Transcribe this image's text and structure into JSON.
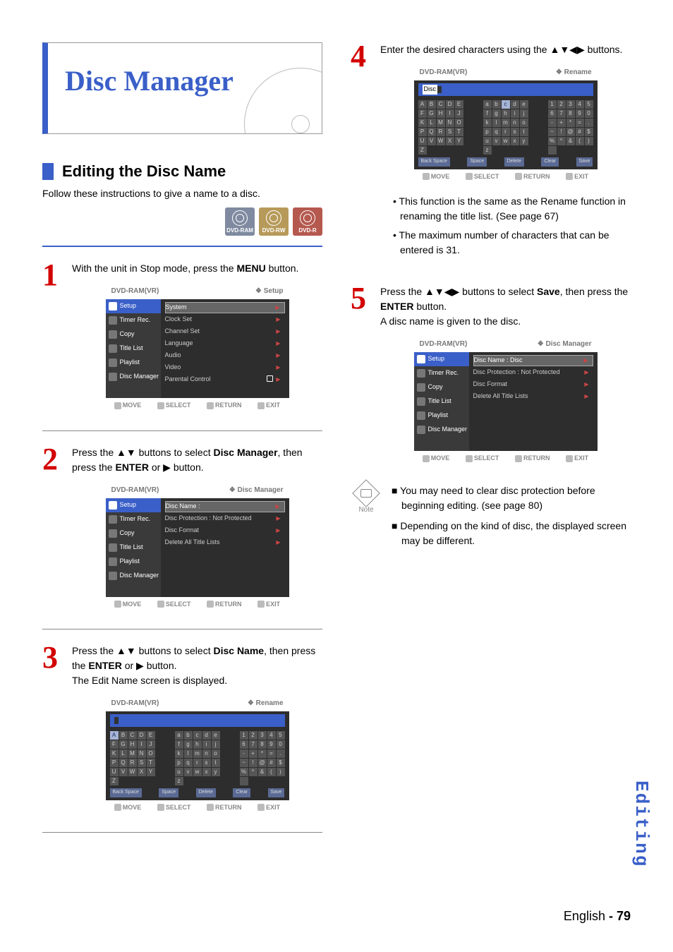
{
  "title": "Disc Manager",
  "section": {
    "heading": "Editing the Disc Name",
    "intro": "Follow these instructions to give a name to a disc."
  },
  "disc_badges": {
    "ram": "DVD-RAM",
    "rw": "DVD-RW",
    "r": "DVD-R"
  },
  "steps": {
    "s1": {
      "num": "1",
      "line1": "With the unit in Stop mode, press the ",
      "bold": "MENU",
      "line2": " button."
    },
    "s2": {
      "num": "2",
      "line1": "Press the ▲▼ buttons to select ",
      "bold": "Disc Manager",
      "line2": ", then press the ",
      "bold2": "ENTER",
      "line3": " or ▶ button."
    },
    "s3": {
      "num": "3",
      "line1": "Press the ▲▼ buttons to select ",
      "bold": "Disc Name",
      "line2": ", then press the ",
      "bold2": "ENTER",
      "line3": " or ▶ button.",
      "line4": "The Edit Name screen is displayed."
    },
    "s4": {
      "num": "4",
      "line1": "Enter the desired characters using the ▲▼◀▶ buttons."
    },
    "s5": {
      "num": "5",
      "line1": "Press the ▲▼◀▶ buttons to select ",
      "bold": "Save",
      "line2": ", then press the ",
      "bold2": "ENTER",
      "line3": " button.",
      "line4": "A disc name is given to the disc."
    }
  },
  "step4_bullets": {
    "b1": "• This function is the same as the Rename function in renaming the title list. (See page 67)",
    "b2": "• The maximum number of characters that can be entered is 31."
  },
  "note": {
    "label": "Note",
    "n1": "■ You may need to clear disc protection before beginning editing. (see page 80)",
    "n2": "■ Depending on the kind of disc, the displayed screen may be different."
  },
  "osd_common": {
    "device": "DVD-RAM(VR)",
    "move": "MOVE",
    "select": "SELECT",
    "return": "RETURN",
    "exit": "EXIT"
  },
  "osd_setup": {
    "crumb": "Setup",
    "tabs": {
      "setup": "Setup",
      "timer": "Timer Rec.",
      "copy": "Copy",
      "title": "Title List",
      "play": "Playlist",
      "mgr": "Disc Manager"
    },
    "items": {
      "sys": "System",
      "clk": "Clock Set",
      "ch": "Channel Set",
      "lang": "Language",
      "audio": "Audio",
      "video": "Video",
      "par": "Parental Control"
    }
  },
  "osd_mgr": {
    "crumb": "Disc Manager",
    "items": {
      "name": "Disc Name",
      "nameval": ":",
      "prot": "Disc Protection",
      "protval": ": Not Protected",
      "fmt": "Disc Format",
      "del": "Delete All Title Lists"
    }
  },
  "osd_mgr2": {
    "items": {
      "name": "Disc Name",
      "nameval": ": Disc",
      "prot": "Disc Protection",
      "protval": ": Not Protected",
      "fmt": "Disc Format",
      "del": "Delete All Title Lists"
    }
  },
  "osd_rename": {
    "crumb": "Rename",
    "field_prefix": "",
    "disc_label": "Disc",
    "upper": [
      "A",
      "B",
      "C",
      "D",
      "E",
      "F",
      "G",
      "H",
      "I",
      "J",
      "K",
      "L",
      "M",
      "N",
      "O",
      "P",
      "Q",
      "R",
      "S",
      "T",
      "U",
      "V",
      "W",
      "X",
      "Y",
      "Z"
    ],
    "lower": [
      "a",
      "b",
      "c",
      "d",
      "e",
      "f",
      "g",
      "h",
      "i",
      "j",
      "k",
      "l",
      "m",
      "n",
      "o",
      "p",
      "q",
      "r",
      "s",
      "t",
      "u",
      "v",
      "w",
      "x",
      "y",
      "z"
    ],
    "sym": [
      "1",
      "2",
      "3",
      "4",
      "5",
      "6",
      "7",
      "8",
      "9",
      "0",
      "-",
      "+",
      "*",
      "=",
      ".",
      "~",
      "!",
      "@",
      "#",
      "$",
      "%",
      "^",
      "&",
      "(",
      ")",
      " "
    ],
    "fn": {
      "back": "Back Space",
      "space": "Space",
      "delete": "Delete",
      "clear": "Clear",
      "save": "Save"
    }
  },
  "side_tab": "Editing",
  "footer": {
    "lang": "English",
    "sep": " - ",
    "page": "79"
  }
}
